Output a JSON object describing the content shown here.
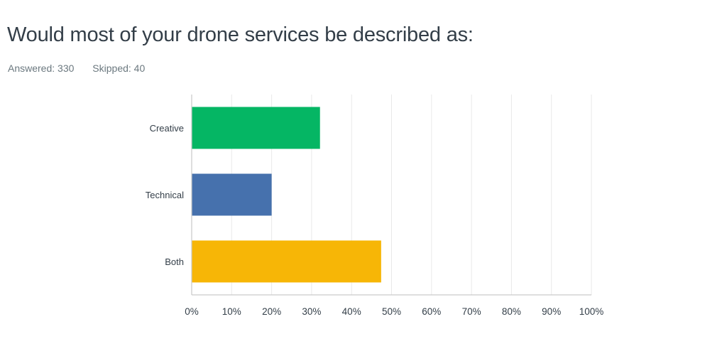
{
  "question": {
    "title": "Would most of your drone services be described as:",
    "answered_label": "Answered: 330",
    "skipped_label": "Skipped: 40"
  },
  "chart_data": {
    "type": "bar",
    "orientation": "horizontal",
    "title": "Would most of your drone services be described as:",
    "categories": [
      "Creative",
      "Technical",
      "Both"
    ],
    "values": [
      32.1,
      20.0,
      47.4
    ],
    "value_unit": "%",
    "colors": [
      "#05b664",
      "#4671ad",
      "#f7b606"
    ],
    "xlabel": "",
    "ylabel": "",
    "xlim": [
      0,
      100
    ],
    "x_ticks": [
      "0%",
      "10%",
      "20%",
      "30%",
      "40%",
      "50%",
      "60%",
      "70%",
      "80%",
      "90%",
      "100%"
    ],
    "grid": true,
    "legend": "none"
  }
}
